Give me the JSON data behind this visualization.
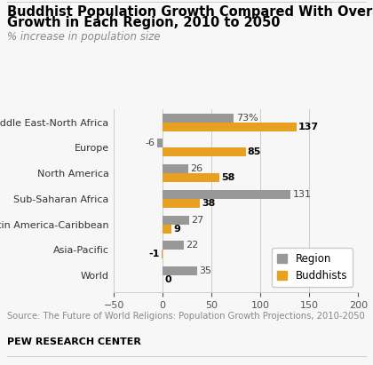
{
  "title_line1": "Buddhist Population Growth Compared With Overall",
  "title_line2": "Growth in Each Region, 2010 to 2050",
  "subtitle": "% increase in population size",
  "source": "Source: The Future of World Religions: Population Growth Projections, 2010-2050",
  "footer": "PEW RESEARCH CENTER",
  "categories": [
    "Middle East-North Africa",
    "Europe",
    "North America",
    "Sub-Saharan Africa",
    "Latin America-Caribbean",
    "Asia-Pacific",
    "World"
  ],
  "region_values": [
    73,
    -6,
    26,
    131,
    27,
    22,
    35
  ],
  "buddhist_values": [
    137,
    85,
    58,
    38,
    9,
    -1,
    0
  ],
  "region_color": "#989898",
  "buddhist_color": "#E8A020",
  "bar_height": 0.35,
  "xlim": [
    -50,
    200
  ],
  "xticks": [
    -50,
    0,
    50,
    100,
    150,
    200
  ],
  "background_color": "#f7f7f7",
  "title_fontsize": 10.5,
  "subtitle_fontsize": 8.5,
  "label_fontsize": 8,
  "tick_fontsize": 8,
  "legend_fontsize": 8.5
}
